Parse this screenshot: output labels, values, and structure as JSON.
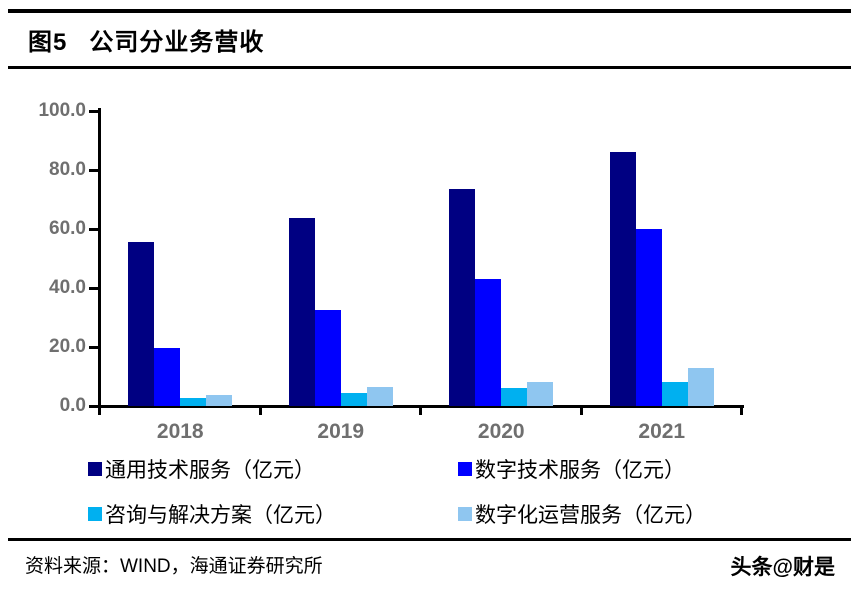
{
  "header": {
    "figure_label": "图5",
    "title": "公司分业务营收"
  },
  "chart_data": {
    "type": "bar",
    "title": "图5 公司分业务营收",
    "categories": [
      "2018",
      "2019",
      "2020",
      "2021"
    ],
    "series": [
      {
        "name": "通用技术服务（亿元）",
        "color": "#000082",
        "values": [
          55.5,
          63.7,
          73.7,
          86.0
        ]
      },
      {
        "name": "数字技术服务（亿元）",
        "color": "#0000FF",
        "values": [
          19.8,
          32.4,
          43.0,
          60.0
        ]
      },
      {
        "name": "咨询与解决方案（亿元）",
        "color": "#00B0F0",
        "values": [
          2.6,
          4.5,
          6.0,
          8.3
        ]
      },
      {
        "name": "数字化运营服务（亿元）",
        "color": "#8FC6F0",
        "values": [
          3.7,
          6.3,
          8.0,
          13.0
        ]
      }
    ],
    "xlabel": "",
    "ylabel": "",
    "ylim": [
      0,
      100
    ],
    "y_tick_step": 20,
    "y_tick_labels": [
      "0.0",
      "20.0",
      "40.0",
      "60.0",
      "80.0",
      "100.0"
    ],
    "grid": false,
    "legend_position": "bottom",
    "axis_label_color": "#6f6f6f"
  },
  "footer": {
    "source": "资料来源：WIND，海通证券研究所",
    "watermark": "头条@财是"
  }
}
